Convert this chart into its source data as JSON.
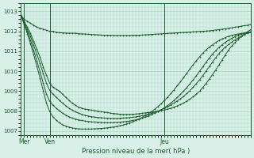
{
  "title": "Pression niveau de la mer( hPa )",
  "bg_color": "#d8f0e8",
  "grid_color": "#b0d8c8",
  "line_color": "#1a5c2a",
  "ylim": [
    1006.8,
    1013.4
  ],
  "yticks": [
    1007,
    1008,
    1009,
    1010,
    1011,
    1012,
    1013
  ],
  "xlim": [
    0,
    72
  ],
  "xlabel_ticks": [
    1,
    9,
    45
  ],
  "xlabel_labels": [
    "Mer",
    "Ven",
    "Jeu"
  ],
  "vlines": [
    1,
    9,
    45
  ],
  "num_points": 73,
  "series": [
    [
      1012.8,
      1012.6,
      1012.5,
      1012.4,
      1012.3,
      1012.2,
      1012.15,
      1012.1,
      1012.05,
      1012.0,
      1012.0,
      1011.95,
      1011.93,
      1011.92,
      1011.91,
      1011.9,
      1011.9,
      1011.9,
      1011.88,
      1011.87,
      1011.86,
      1011.85,
      1011.84,
      1011.83,
      1011.82,
      1011.81,
      1011.8,
      1011.8,
      1011.8,
      1011.79,
      1011.79,
      1011.79,
      1011.79,
      1011.79,
      1011.79,
      1011.8,
      1011.8,
      1011.8,
      1011.81,
      1011.82,
      1011.83,
      1011.84,
      1011.85,
      1011.86,
      1011.87,
      1011.88,
      1011.89,
      1011.9,
      1011.91,
      1011.92,
      1011.93,
      1011.94,
      1011.95,
      1011.96,
      1011.97,
      1011.98,
      1011.99,
      1012.0,
      1012.01,
      1012.02,
      1012.04,
      1012.06,
      1012.08,
      1012.1,
      1012.12,
      1012.15,
      1012.17,
      1012.2,
      1012.22,
      1012.25,
      1012.28,
      1012.3,
      1012.35
    ],
    [
      1012.8,
      1012.5,
      1012.2,
      1011.9,
      1011.5,
      1011.1,
      1010.7,
      1010.2,
      1009.8,
      1009.4,
      1009.2,
      1009.1,
      1009.0,
      1008.85,
      1008.7,
      1008.55,
      1008.4,
      1008.3,
      1008.2,
      1008.15,
      1008.1,
      1008.08,
      1008.05,
      1008.02,
      1008.0,
      1007.97,
      1007.95,
      1007.93,
      1007.9,
      1007.88,
      1007.86,
      1007.84,
      1007.83,
      1007.83,
      1007.83,
      1007.84,
      1007.85,
      1007.87,
      1007.89,
      1007.91,
      1007.93,
      1007.95,
      1007.97,
      1008.0,
      1008.03,
      1008.06,
      1008.1,
      1008.14,
      1008.2,
      1008.26,
      1008.33,
      1008.4,
      1008.5,
      1008.6,
      1008.72,
      1008.85,
      1009.0,
      1009.18,
      1009.38,
      1009.6,
      1009.82,
      1010.05,
      1010.3,
      1010.55,
      1010.8,
      1011.05,
      1011.25,
      1011.42,
      1011.58,
      1011.73,
      1011.87,
      1011.98,
      1012.08
    ],
    [
      1012.8,
      1012.45,
      1012.1,
      1011.75,
      1011.3,
      1010.85,
      1010.38,
      1009.88,
      1009.4,
      1009.05,
      1008.85,
      1008.7,
      1008.55,
      1008.4,
      1008.27,
      1008.15,
      1008.05,
      1007.97,
      1007.9,
      1007.84,
      1007.79,
      1007.75,
      1007.72,
      1007.7,
      1007.68,
      1007.67,
      1007.65,
      1007.64,
      1007.63,
      1007.63,
      1007.63,
      1007.64,
      1007.65,
      1007.66,
      1007.67,
      1007.69,
      1007.71,
      1007.74,
      1007.77,
      1007.8,
      1007.84,
      1007.89,
      1007.94,
      1008.0,
      1008.07,
      1008.14,
      1008.22,
      1008.31,
      1008.4,
      1008.51,
      1008.62,
      1008.74,
      1008.88,
      1009.03,
      1009.2,
      1009.38,
      1009.57,
      1009.78,
      1010.0,
      1010.22,
      1010.45,
      1010.67,
      1010.87,
      1011.05,
      1011.2,
      1011.33,
      1011.45,
      1011.56,
      1011.66,
      1011.75,
      1011.83,
      1011.9,
      1011.96
    ],
    [
      1012.8,
      1012.4,
      1012.0,
      1011.55,
      1011.05,
      1010.52,
      1009.97,
      1009.4,
      1008.85,
      1008.5,
      1008.3,
      1008.15,
      1008.02,
      1007.9,
      1007.8,
      1007.72,
      1007.65,
      1007.6,
      1007.56,
      1007.53,
      1007.5,
      1007.48,
      1007.46,
      1007.45,
      1007.44,
      1007.43,
      1007.42,
      1007.42,
      1007.42,
      1007.42,
      1007.43,
      1007.44,
      1007.46,
      1007.48,
      1007.5,
      1007.53,
      1007.56,
      1007.6,
      1007.65,
      1007.7,
      1007.76,
      1007.83,
      1007.9,
      1007.98,
      1008.07,
      1008.17,
      1008.28,
      1008.4,
      1008.54,
      1008.68,
      1008.84,
      1009.01,
      1009.18,
      1009.37,
      1009.57,
      1009.78,
      1010.0,
      1010.22,
      1010.44,
      1010.65,
      1010.85,
      1011.02,
      1011.18,
      1011.32,
      1011.44,
      1011.55,
      1011.64,
      1011.72,
      1011.79,
      1011.85,
      1011.9,
      1011.94,
      1011.98
    ],
    [
      1012.8,
      1012.35,
      1011.88,
      1011.38,
      1010.83,
      1010.25,
      1009.65,
      1009.02,
      1008.4,
      1007.98,
      1007.72,
      1007.55,
      1007.42,
      1007.32,
      1007.25,
      1007.2,
      1007.16,
      1007.13,
      1007.11,
      1007.1,
      1007.1,
      1007.1,
      1007.1,
      1007.11,
      1007.12,
      1007.13,
      1007.14,
      1007.16,
      1007.18,
      1007.2,
      1007.23,
      1007.26,
      1007.3,
      1007.35,
      1007.4,
      1007.46,
      1007.53,
      1007.6,
      1007.68,
      1007.77,
      1007.87,
      1007.98,
      1008.1,
      1008.23,
      1008.38,
      1008.54,
      1008.7,
      1008.88,
      1009.07,
      1009.27,
      1009.47,
      1009.68,
      1009.9,
      1010.12,
      1010.33,
      1010.53,
      1010.72,
      1010.9,
      1011.06,
      1011.2,
      1011.32,
      1011.43,
      1011.53,
      1011.61,
      1011.68,
      1011.74,
      1011.79,
      1011.83,
      1011.86,
      1011.89,
      1011.91,
      1011.93,
      1011.95
    ]
  ]
}
